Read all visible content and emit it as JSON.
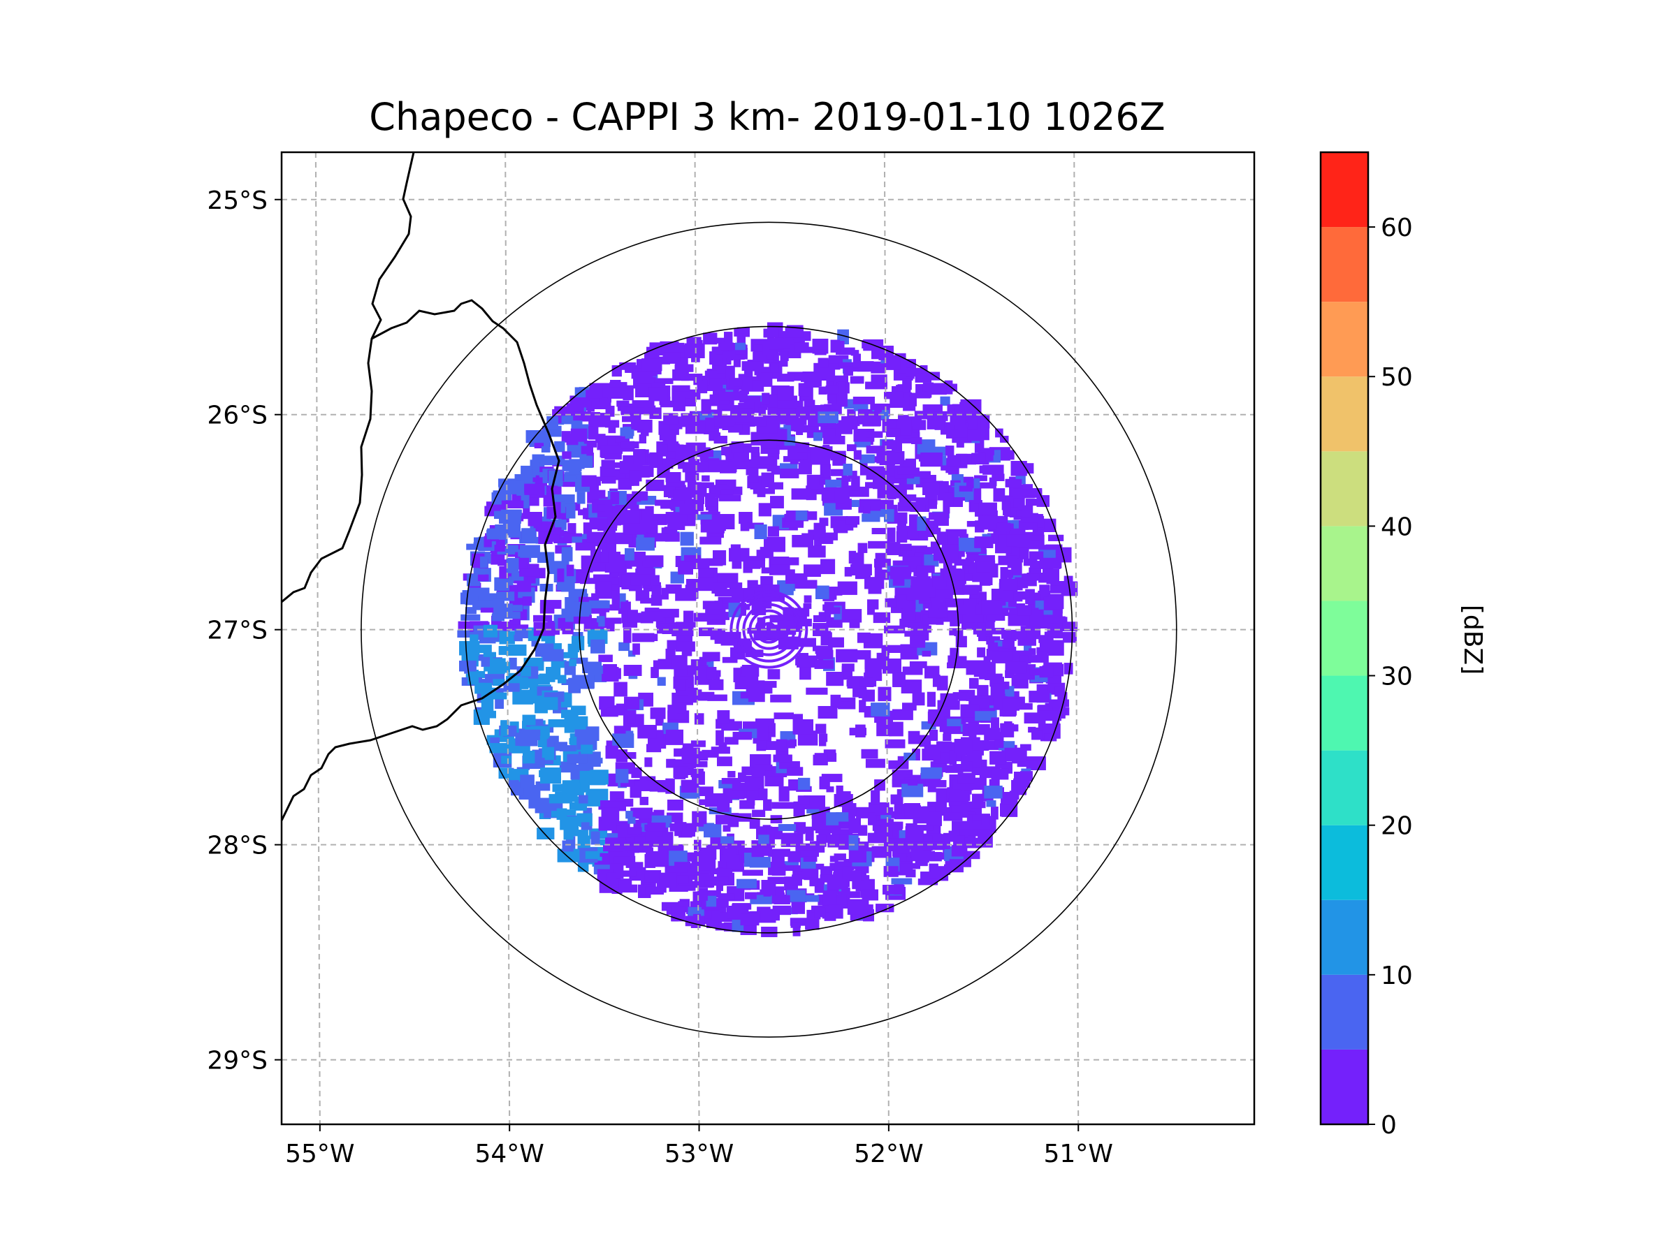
{
  "chart_data": {
    "type": "heatmap",
    "title": "Chapeco - CAPPI 3 km- 2019-01-10 1026Z",
    "projection": "lat-lon map, polar radar sweep",
    "lon_range": [
      -55.18,
      -50.05
    ],
    "lat_range": [
      -29.3,
      -24.78
    ],
    "lon_ticks": [
      -55,
      -54,
      -53,
      -52,
      -51
    ],
    "lon_tick_labels": [
      "55°W",
      "54°W",
      "53°W",
      "52°W",
      "51°W"
    ],
    "lat_ticks": [
      -25,
      -26,
      -27,
      -28,
      -29
    ],
    "lat_tick_labels": [
      "25°S",
      "26°S",
      "27°S",
      "28°S",
      "29°S"
    ],
    "gridlines": true,
    "radar_center": {
      "lon": -52.61,
      "lat": -27.0
    },
    "range_rings_deg": [
      1.0,
      1.6,
      2.15
    ],
    "field": "reflectivity",
    "value_range": [
      0,
      65
    ],
    "dominant_values_dbz": [
      0,
      5,
      10,
      15
    ],
    "colorbar": {
      "label": "[dBZ]",
      "min": 0,
      "max": 65,
      "bounds": [
        0,
        5,
        10,
        15,
        20,
        25,
        30,
        35,
        40,
        45,
        50,
        55,
        60,
        65
      ],
      "colors": [
        "#7421fb",
        "#4a65f1",
        "#2294e6",
        "#0cbcdc",
        "#2ee0c8",
        "#4ef7b0",
        "#7efd9a",
        "#a8f48c",
        "#ccde7e",
        "#f0c26a",
        "#ff9b54",
        "#ff6a3a",
        "#ff2418"
      ],
      "tick_values": [
        0,
        10,
        20,
        30,
        40,
        50,
        60
      ],
      "tick_labels": [
        "0",
        "10",
        "20",
        "30",
        "40",
        "50",
        "60"
      ],
      "position": "right"
    }
  }
}
